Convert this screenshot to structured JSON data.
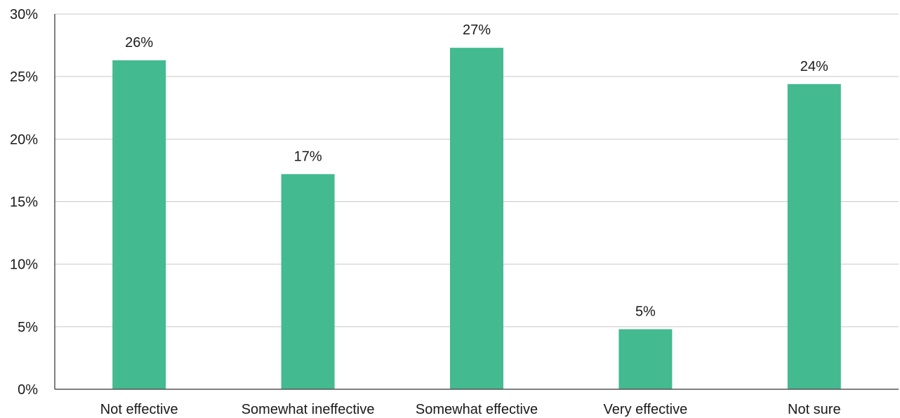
{
  "chart_data": {
    "type": "bar",
    "categories": [
      "Not effective",
      "Somewhat ineffective",
      "Somewhat effective",
      "Very effective",
      "Not sure"
    ],
    "values": [
      26.3,
      17.2,
      27.3,
      4.8,
      24.4
    ],
    "data_labels": [
      "26%",
      "17%",
      "27%",
      "5%",
      "24%"
    ],
    "y_ticks": [
      0,
      5,
      10,
      15,
      20,
      25,
      30
    ],
    "y_tick_labels": [
      "0%",
      "5%",
      "10%",
      "15%",
      "20%",
      "25%",
      "30%"
    ],
    "ylim": [
      0,
      30
    ],
    "grid": true,
    "bar_color": "#43BA8F",
    "grid_color": "#c8c8c8",
    "axis_color": "#555555"
  }
}
